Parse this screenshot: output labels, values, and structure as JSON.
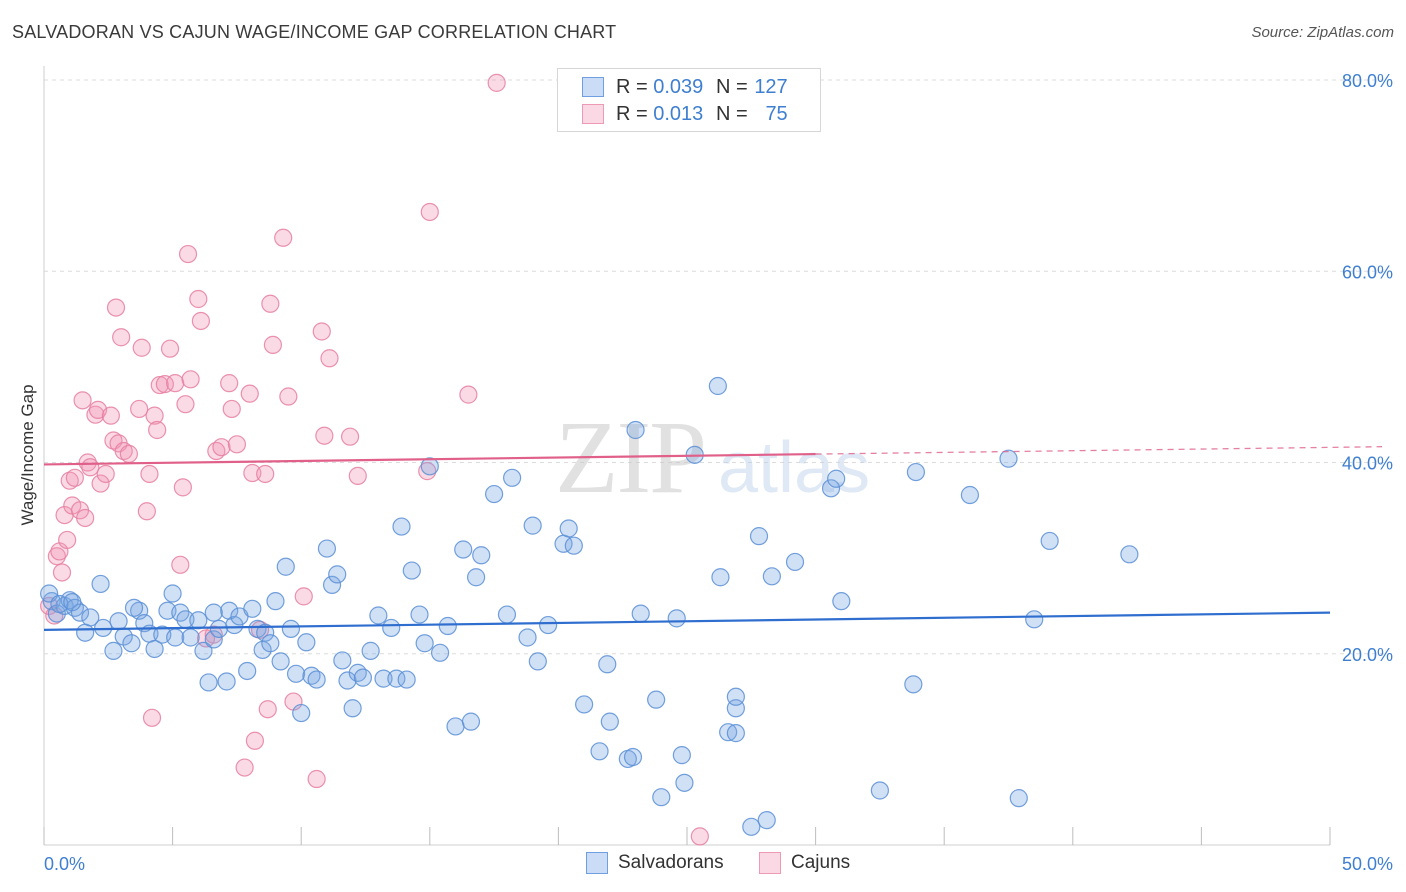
{
  "header": {
    "title": "SALVADORAN VS CAJUN WAGE/INCOME GAP CORRELATION CHART",
    "source": "Source: ZipAtlas.com"
  },
  "colors": {
    "blue": "#5b8fd6",
    "blue_fill": "rgba(120,165,225,0.35)",
    "blue_line": "#2f6ecf",
    "pink": "#e67fa0",
    "pink_fill": "rgba(240,150,180,0.35)",
    "pink_line": "#e0608a",
    "axis_text": "#3f7fd0"
  },
  "legend": {
    "rows": [
      {
        "r_label": "R = ",
        "r_value": "0.039",
        "n_label": "N = ",
        "n_value": "127"
      },
      {
        "r_label": "R = ",
        "r_value": "0.013",
        "n_label": "N = ",
        "n_value": "75"
      }
    ]
  },
  "bottom_legend": {
    "items": [
      {
        "label": "Salvadorans"
      },
      {
        "label": "Cajuns"
      }
    ]
  },
  "chart_data": {
    "type": "scatter",
    "title": "SALVADORAN VS CAJUN WAGE/INCOME GAP CORRELATION CHART",
    "ylabel": "Wage/Income Gap",
    "xlabel": "",
    "xlim": [
      0,
      50
    ],
    "ylim": [
      0,
      80
    ],
    "x_tick_labels": [
      "0.0%",
      "50.0%"
    ],
    "y_ticks": [
      20,
      40,
      60,
      80
    ],
    "y_tick_labels": [
      "20.0%",
      "40.0%",
      "60.0%",
      "80.0%"
    ],
    "grid": true,
    "watermark": "ZIPatlas",
    "series": [
      {
        "name": "Salvadorans",
        "trend": {
          "x": [
            0,
            50
          ],
          "y": [
            22.5,
            24.3
          ]
        },
        "points": [
          [
            0.3,
            25.5
          ],
          [
            0.5,
            24.2
          ],
          [
            0.8,
            25.0
          ],
          [
            1.0,
            25.6
          ],
          [
            1.2,
            24.8
          ],
          [
            1.4,
            24.3
          ],
          [
            1.6,
            22.2
          ],
          [
            1.8,
            23.8
          ],
          [
            2.3,
            22.7
          ],
          [
            2.7,
            20.3
          ],
          [
            2.9,
            23.4
          ],
          [
            3.1,
            21.8
          ],
          [
            3.4,
            21.1
          ],
          [
            3.7,
            24.5
          ],
          [
            3.9,
            23.2
          ],
          [
            4.1,
            22.1
          ],
          [
            4.3,
            20.5
          ],
          [
            4.6,
            22.0
          ],
          [
            4.8,
            24.5
          ],
          [
            5.0,
            26.3
          ],
          [
            5.1,
            21.7
          ],
          [
            5.3,
            24.3
          ],
          [
            5.5,
            23.6
          ],
          [
            5.7,
            21.7
          ],
          [
            6.0,
            23.5
          ],
          [
            6.2,
            20.3
          ],
          [
            6.4,
            17.0
          ],
          [
            6.6,
            21.5
          ],
          [
            6.8,
            22.6
          ],
          [
            7.1,
            17.1
          ],
          [
            7.2,
            24.5
          ],
          [
            7.4,
            23.0
          ],
          [
            7.6,
            23.9
          ],
          [
            7.9,
            18.2
          ],
          [
            8.1,
            24.7
          ],
          [
            8.3,
            22.6
          ],
          [
            8.5,
            20.4
          ],
          [
            8.6,
            22.2
          ],
          [
            8.8,
            21.1
          ],
          [
            9.0,
            25.5
          ],
          [
            9.2,
            19.2
          ],
          [
            9.4,
            29.1
          ],
          [
            9.6,
            22.6
          ],
          [
            9.8,
            17.9
          ],
          [
            10.0,
            13.8
          ],
          [
            10.2,
            21.2
          ],
          [
            10.4,
            17.7
          ],
          [
            10.6,
            17.3
          ],
          [
            11.0,
            31.0
          ],
          [
            11.2,
            27.2
          ],
          [
            11.4,
            28.3
          ],
          [
            11.6,
            19.3
          ],
          [
            11.8,
            17.2
          ],
          [
            12.0,
            14.3
          ],
          [
            12.2,
            18.0
          ],
          [
            12.4,
            17.5
          ],
          [
            12.7,
            20.3
          ],
          [
            13.0,
            24.0
          ],
          [
            13.2,
            17.4
          ],
          [
            13.5,
            22.7
          ],
          [
            13.7,
            17.4
          ],
          [
            13.9,
            33.3
          ],
          [
            14.1,
            17.3
          ],
          [
            14.3,
            28.7
          ],
          [
            14.6,
            24.1
          ],
          [
            14.8,
            21.1
          ],
          [
            15.0,
            39.6
          ],
          [
            15.4,
            20.1
          ],
          [
            15.7,
            22.9
          ],
          [
            16.0,
            12.4
          ],
          [
            16.3,
            30.9
          ],
          [
            16.6,
            12.9
          ],
          [
            16.8,
            28.0
          ],
          [
            17.0,
            30.3
          ],
          [
            17.5,
            36.7
          ],
          [
            18.0,
            24.1
          ],
          [
            18.2,
            38.4
          ],
          [
            18.8,
            21.7
          ],
          [
            19.0,
            33.4
          ],
          [
            19.2,
            19.2
          ],
          [
            19.6,
            23.0
          ],
          [
            20.2,
            31.5
          ],
          [
            20.4,
            33.1
          ],
          [
            20.6,
            31.3
          ],
          [
            21.0,
            14.7
          ],
          [
            21.6,
            9.8
          ],
          [
            21.9,
            18.9
          ],
          [
            22.0,
            12.9
          ],
          [
            22.7,
            9.0
          ],
          [
            22.9,
            9.2
          ],
          [
            23.0,
            43.4
          ],
          [
            23.2,
            24.2
          ],
          [
            23.8,
            15.2
          ],
          [
            24.0,
            5.0
          ],
          [
            24.6,
            23.7
          ],
          [
            24.8,
            9.4
          ],
          [
            24.9,
            6.5
          ],
          [
            25.3,
            40.8
          ],
          [
            26.2,
            48.0
          ],
          [
            26.3,
            28.0
          ],
          [
            26.6,
            11.8
          ],
          [
            26.9,
            11.7
          ],
          [
            26.9,
            14.3
          ],
          [
            26.9,
            15.5
          ],
          [
            27.5,
            1.9
          ],
          [
            27.8,
            32.3
          ],
          [
            28.1,
            2.6
          ],
          [
            28.3,
            28.1
          ],
          [
            29.2,
            29.6
          ],
          [
            30.6,
            37.3
          ],
          [
            30.8,
            38.3
          ],
          [
            31.0,
            25.5
          ],
          [
            32.5,
            5.7
          ],
          [
            33.8,
            16.8
          ],
          [
            33.9,
            39.0
          ],
          [
            36.0,
            36.6
          ],
          [
            37.5,
            40.4
          ],
          [
            37.9,
            4.9
          ],
          [
            38.5,
            23.6
          ],
          [
            39.1,
            31.8
          ],
          [
            42.2,
            30.4
          ],
          [
            0.2,
            26.3
          ],
          [
            0.6,
            25.2
          ],
          [
            1.1,
            25.4
          ],
          [
            2.2,
            27.3
          ],
          [
            3.5,
            24.8
          ],
          [
            6.6,
            24.3
          ]
        ]
      },
      {
        "name": "Cajuns",
        "trend": {
          "x": [
            0,
            50
          ],
          "y": [
            39.8,
            41.6
          ]
        },
        "points": [
          [
            0.2,
            25.0
          ],
          [
            0.4,
            24.0
          ],
          [
            0.5,
            30.2
          ],
          [
            0.6,
            30.7
          ],
          [
            0.7,
            28.5
          ],
          [
            0.8,
            34.5
          ],
          [
            0.9,
            31.9
          ],
          [
            1.0,
            38.1
          ],
          [
            1.1,
            35.5
          ],
          [
            1.2,
            38.4
          ],
          [
            1.4,
            35.0
          ],
          [
            1.5,
            46.5
          ],
          [
            1.6,
            34.2
          ],
          [
            1.7,
            40.0
          ],
          [
            1.8,
            39.5
          ],
          [
            2.0,
            45.0
          ],
          [
            2.1,
            45.5
          ],
          [
            2.2,
            37.8
          ],
          [
            2.4,
            38.8
          ],
          [
            2.6,
            44.9
          ],
          [
            2.7,
            42.3
          ],
          [
            2.8,
            56.2
          ],
          [
            2.9,
            42.0
          ],
          [
            3.0,
            53.1
          ],
          [
            3.1,
            41.2
          ],
          [
            3.3,
            40.9
          ],
          [
            3.7,
            45.6
          ],
          [
            3.8,
            52.0
          ],
          [
            4.0,
            34.9
          ],
          [
            4.1,
            38.8
          ],
          [
            4.2,
            13.3
          ],
          [
            4.3,
            44.9
          ],
          [
            4.4,
            43.4
          ],
          [
            4.5,
            48.1
          ],
          [
            4.7,
            48.2
          ],
          [
            4.9,
            51.9
          ],
          [
            5.1,
            48.3
          ],
          [
            5.3,
            29.3
          ],
          [
            5.4,
            37.4
          ],
          [
            5.5,
            46.1
          ],
          [
            5.6,
            61.8
          ],
          [
            5.7,
            48.7
          ],
          [
            6.0,
            57.1
          ],
          [
            6.1,
            54.8
          ],
          [
            6.3,
            21.6
          ],
          [
            6.6,
            22.0
          ],
          [
            6.7,
            41.2
          ],
          [
            6.9,
            41.6
          ],
          [
            7.2,
            48.3
          ],
          [
            7.3,
            45.6
          ],
          [
            7.5,
            41.9
          ],
          [
            7.8,
            8.1
          ],
          [
            8.0,
            47.2
          ],
          [
            8.1,
            38.9
          ],
          [
            8.2,
            10.9
          ],
          [
            8.4,
            22.5
          ],
          [
            8.6,
            38.8
          ],
          [
            8.7,
            14.2
          ],
          [
            8.8,
            56.6
          ],
          [
            8.9,
            52.3
          ],
          [
            9.3,
            63.5
          ],
          [
            9.5,
            46.9
          ],
          [
            9.7,
            15.0
          ],
          [
            10.1,
            26.0
          ],
          [
            10.6,
            6.9
          ],
          [
            10.8,
            53.7
          ],
          [
            10.9,
            42.8
          ],
          [
            11.1,
            50.9
          ],
          [
            11.9,
            42.7
          ],
          [
            12.2,
            38.6
          ],
          [
            14.9,
            39.1
          ],
          [
            15.0,
            66.2
          ],
          [
            16.5,
            47.1
          ],
          [
            17.6,
            79.7
          ],
          [
            25.5,
            0.9
          ]
        ]
      }
    ]
  }
}
